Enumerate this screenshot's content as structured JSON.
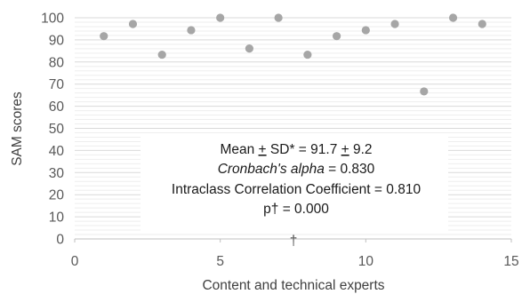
{
  "chart_data": {
    "type": "scatter",
    "xlabel": "Content and technical experts",
    "ylabel": "SAM scores",
    "xlim": [
      0,
      15
    ],
    "ylim": [
      0,
      100
    ],
    "x_ticks": [
      0,
      5,
      10,
      15
    ],
    "y_ticks": [
      0,
      10,
      20,
      30,
      40,
      50,
      60,
      70,
      80,
      90,
      100
    ],
    "grid": "horizontal major and minor",
    "marker_color": "#a6a6a6",
    "points": [
      {
        "x": 1,
        "y": 91.7
      },
      {
        "x": 2,
        "y": 97.2
      },
      {
        "x": 3,
        "y": 83.3
      },
      {
        "x": 4,
        "y": 94.4
      },
      {
        "x": 5,
        "y": 100
      },
      {
        "x": 6,
        "y": 86.1
      },
      {
        "x": 7,
        "y": 100
      },
      {
        "x": 8,
        "y": 83.3
      },
      {
        "x": 9,
        "y": 91.7
      },
      {
        "x": 10,
        "y": 94.4
      },
      {
        "x": 11,
        "y": 97.2
      },
      {
        "x": 12,
        "y": 66.7
      },
      {
        "x": 13,
        "y": 100
      },
      {
        "x": 14,
        "y": 97.2
      }
    ],
    "annotation": {
      "mean_line": {
        "prefix": "Mean ",
        "pm1": "+",
        "mid": " SD* = 91.7 ",
        "pm2": "+",
        "suffix": " 9.2"
      },
      "alpha_line": {
        "label": "Cronbach's alpha",
        "value": " = 0.830"
      },
      "icc_line": "Intraclass Correlation Coefficient = 0.810",
      "p_line": "p† = 0.000"
    },
    "dagger_mark": "†"
  }
}
